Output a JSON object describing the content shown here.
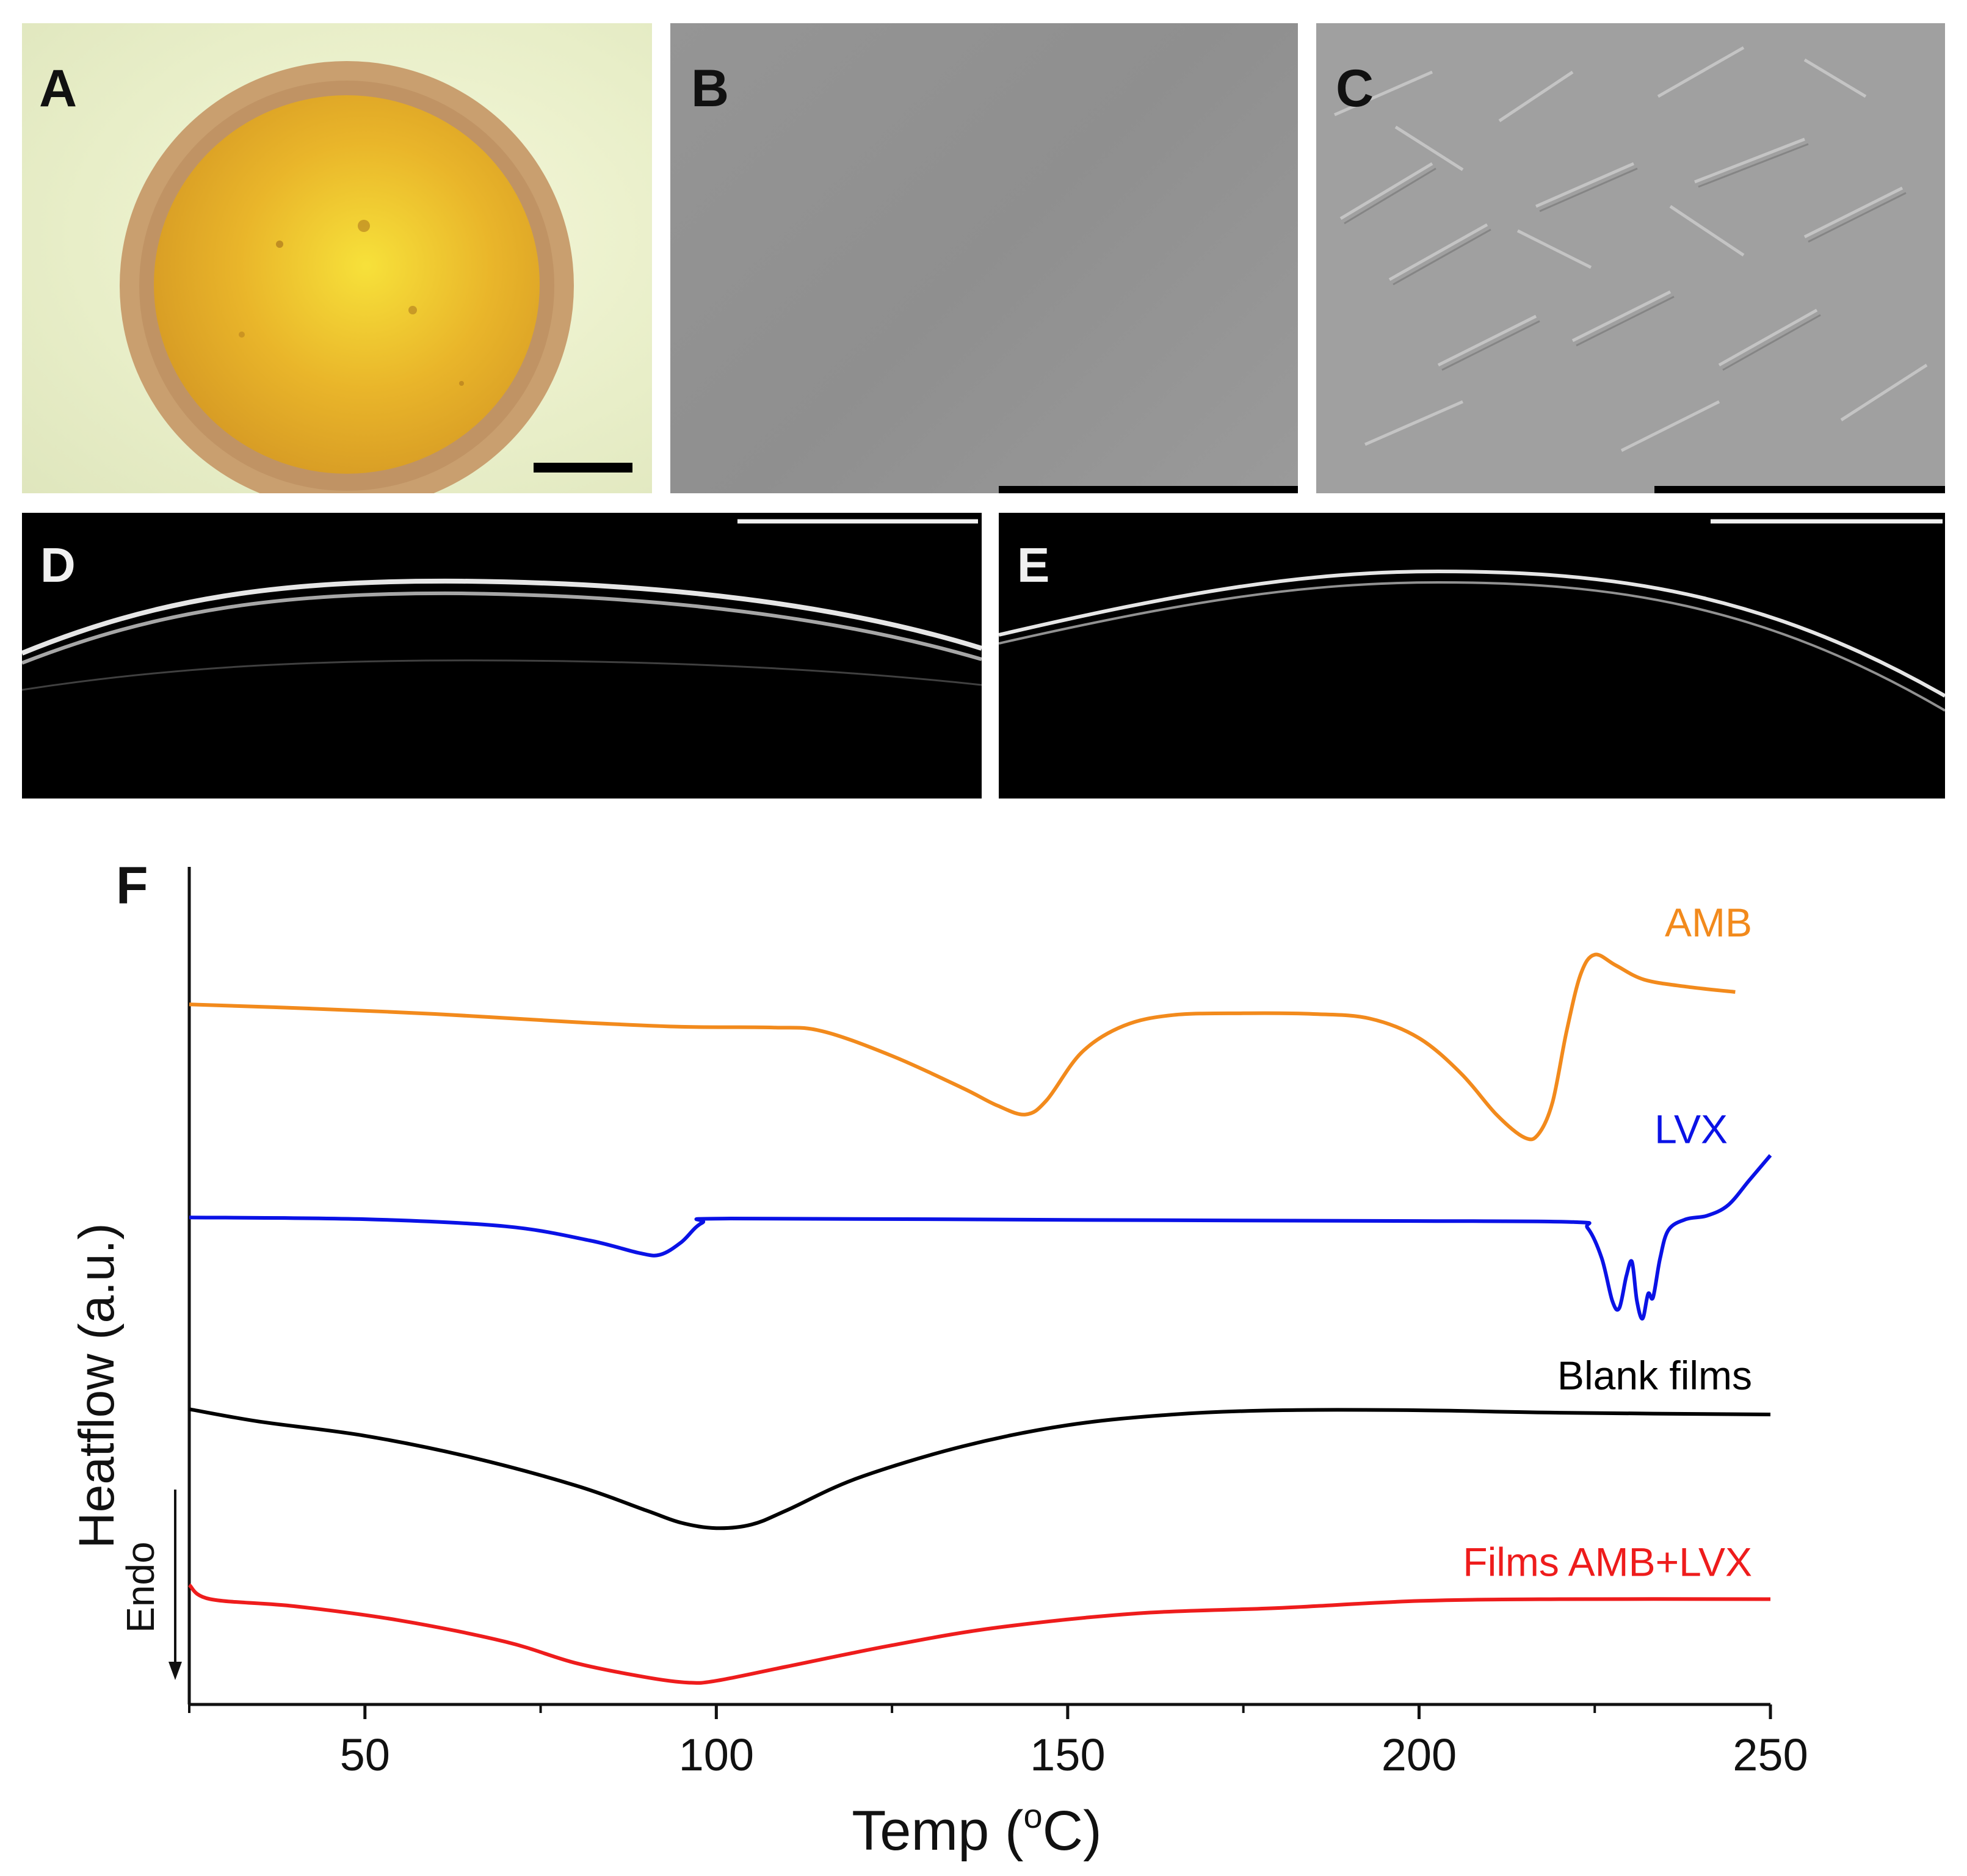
{
  "figure": {
    "panels": {
      "A": {
        "label": "A",
        "description_icon": "circular-film-micrograph"
      },
      "B": {
        "label": "B"
      },
      "C": {
        "label": "C"
      },
      "D": {
        "label": "D"
      },
      "E": {
        "label": "E"
      },
      "F": {
        "label": "F"
      }
    }
  },
  "chart_data": {
    "type": "line",
    "panel_label": "F",
    "xlabel": "Temp (°C)",
    "ylabel": "Heatflow (a.u.)",
    "endo_label": "Endo",
    "xlim": [
      25,
      250
    ],
    "xticks": [
      50,
      100,
      150,
      200,
      250
    ],
    "xtick_labels": [
      "50",
      "100",
      "150",
      "200",
      "250"
    ],
    "yticks": [],
    "grid": false,
    "colors": {
      "AMB": "#f28a1c",
      "LVX": "#0a12e6",
      "Blank": "#000000",
      "Films": "#ee1c1c"
    },
    "series": [
      {
        "name": "AMB",
        "label": "AMB",
        "color": "#f28a1c",
        "points": [
          [
            25,
            -1.05
          ],
          [
            40,
            -1.15
          ],
          [
            60,
            -1.32
          ],
          [
            80,
            -1.55
          ],
          [
            95,
            -1.68
          ],
          [
            108,
            -1.7
          ],
          [
            115,
            -1.8
          ],
          [
            125,
            -2.5
          ],
          [
            135,
            -3.4
          ],
          [
            140,
            -3.9
          ],
          [
            144,
            -4.15
          ],
          [
            147,
            -3.75
          ],
          [
            152,
            -2.4
          ],
          [
            158,
            -1.65
          ],
          [
            165,
            -1.35
          ],
          [
            175,
            -1.3
          ],
          [
            185,
            -1.32
          ],
          [
            193,
            -1.45
          ],
          [
            200,
            -2.0
          ],
          [
            206,
            -3.0
          ],
          [
            211,
            -4.15
          ],
          [
            215,
            -4.8
          ],
          [
            217,
            -4.7
          ],
          [
            219,
            -3.8
          ],
          [
            221,
            -1.8
          ],
          [
            223,
            -0.2
          ],
          [
            225,
            0.35
          ],
          [
            228,
            0.05
          ],
          [
            232,
            -0.35
          ],
          [
            238,
            -0.55
          ],
          [
            245,
            -0.7
          ]
        ]
      },
      {
        "name": "LVX",
        "label": "LVX",
        "color": "#0a12e6",
        "points": [
          [
            25,
            -7.05
          ],
          [
            50,
            -7.1
          ],
          [
            70,
            -7.3
          ],
          [
            82,
            -7.7
          ],
          [
            89,
            -8.05
          ],
          [
            92,
            -8.1
          ],
          [
            95,
            -7.75
          ],
          [
            98,
            -7.2
          ],
          [
            102,
            -7.08
          ],
          [
            150,
            -7.12
          ],
          [
            200,
            -7.15
          ],
          [
            222,
            -7.18
          ],
          [
            224,
            -7.35
          ],
          [
            226,
            -8.2
          ],
          [
            227.5,
            -9.4
          ],
          [
            228.5,
            -9.6
          ],
          [
            229.5,
            -8.7
          ],
          [
            230.3,
            -8.3
          ],
          [
            231,
            -9.4
          ],
          [
            231.8,
            -9.9
          ],
          [
            232.6,
            -9.2
          ],
          [
            233.3,
            -9.3
          ],
          [
            234.3,
            -8.2
          ],
          [
            235.5,
            -7.4
          ],
          [
            238,
            -7.1
          ],
          [
            241,
            -7.0
          ],
          [
            244,
            -6.7
          ],
          [
            247,
            -6.0
          ],
          [
            250,
            -5.3
          ]
        ]
      },
      {
        "name": "Blank films",
        "label": "Blank films",
        "color": "#000000",
        "points": [
          [
            25,
            -12.45
          ],
          [
            35,
            -12.8
          ],
          [
            50,
            -13.2
          ],
          [
            65,
            -13.8
          ],
          [
            80,
            -14.6
          ],
          [
            90,
            -15.3
          ],
          [
            95,
            -15.65
          ],
          [
            100,
            -15.8
          ],
          [
            105,
            -15.7
          ],
          [
            110,
            -15.3
          ],
          [
            120,
            -14.4
          ],
          [
            135,
            -13.5
          ],
          [
            150,
            -12.9
          ],
          [
            165,
            -12.6
          ],
          [
            180,
            -12.48
          ],
          [
            200,
            -12.48
          ],
          [
            220,
            -12.55
          ],
          [
            250,
            -12.6
          ]
        ]
      },
      {
        "name": "Films AMB+LVX",
        "label": "Films AMB+LVX",
        "color": "#ee1c1c",
        "points": [
          [
            25,
            -17.4
          ],
          [
            28,
            -17.8
          ],
          [
            40,
            -18.0
          ],
          [
            55,
            -18.4
          ],
          [
            70,
            -19.0
          ],
          [
            80,
            -19.6
          ],
          [
            90,
            -20.0
          ],
          [
            96,
            -20.15
          ],
          [
            100,
            -20.1
          ],
          [
            110,
            -19.7
          ],
          [
            125,
            -19.1
          ],
          [
            140,
            -18.6
          ],
          [
            160,
            -18.2
          ],
          [
            180,
            -18.05
          ],
          [
            200,
            -17.85
          ],
          [
            220,
            -17.8
          ],
          [
            250,
            -17.8
          ]
        ]
      }
    ]
  }
}
